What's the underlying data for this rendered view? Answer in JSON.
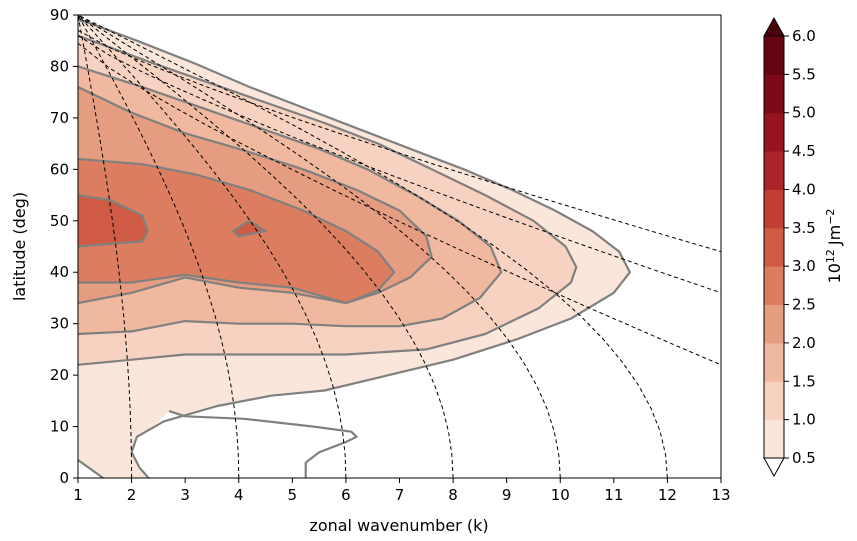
{
  "chart_data": {
    "type": "filled-contour",
    "xlabel": "zonal wavenumber (k)",
    "ylabel": "latitude (deg)",
    "xlim": [
      1,
      13
    ],
    "ylim": [
      0,
      90
    ],
    "x_ticks": [
      "1",
      "2",
      "3",
      "4",
      "5",
      "6",
      "7",
      "8",
      "9",
      "10",
      "11",
      "12",
      "13"
    ],
    "y_ticks": [
      "0",
      "10",
      "20",
      "30",
      "40",
      "50",
      "60",
      "70",
      "80",
      "90"
    ],
    "colorbar": {
      "label_base": "10",
      "label_exp": "12",
      "label_unit": "Jm",
      "label_unit_exp": "−2",
      "levels": [
        "0.5",
        "1.0",
        "1.5",
        "2.0",
        "2.5",
        "3.0",
        "3.5",
        "4.0",
        "4.5",
        "5.0",
        "5.5",
        "6.0"
      ],
      "extend": "both",
      "colors": [
        "#ffffff",
        "#fbe6dc",
        "#f7d2c0",
        "#efb89f",
        "#e69c80",
        "#dc7d60",
        "#d05b44",
        "#c23e36",
        "#ad2428",
        "#96141f",
        "#7d0a16",
        "#650410",
        "#4a000c"
      ]
    },
    "contour_fill_levels": [
      {
        "min": 0.5,
        "max": 1.0
      },
      {
        "min": 1.0,
        "max": 1.5
      },
      {
        "min": 1.5,
        "max": 2.0
      },
      {
        "min": 2.0,
        "max": 2.5
      },
      {
        "min": 2.5,
        "max": 3.0
      },
      {
        "min": 3.0,
        "max": 3.5
      }
    ],
    "contour_lines": [
      {
        "level": 0.5,
        "points": [
          [
            1,
            3.5
          ],
          [
            1.6,
            -1
          ]
        ]
      },
      {
        "level": 0.5,
        "points": [
          [
            2.4,
            -1
          ],
          [
            2.15,
            2
          ],
          [
            2,
            5
          ],
          [
            2.1,
            8
          ],
          [
            2.6,
            11
          ],
          [
            3.6,
            14
          ],
          [
            4.6,
            16
          ],
          [
            5.6,
            17
          ],
          [
            6.8,
            20
          ],
          [
            8,
            23
          ],
          [
            9.2,
            27
          ],
          [
            10.2,
            31
          ],
          [
            11,
            36
          ],
          [
            11.3,
            40
          ],
          [
            11.1,
            44
          ],
          [
            10.6,
            48
          ],
          [
            9.9,
            52
          ],
          [
            9.1,
            56
          ],
          [
            8.2,
            60
          ],
          [
            7.2,
            64
          ],
          [
            6.2,
            68
          ],
          [
            5.2,
            72
          ],
          [
            4.2,
            76
          ],
          [
            3.2,
            80.5
          ],
          [
            2.1,
            85
          ],
          [
            1.2,
            88.5
          ],
          [
            1,
            89
          ]
        ]
      },
      {
        "level": 0.5,
        "points": [
          [
            5.25,
            0
          ],
          [
            5.25,
            3
          ],
          [
            5.5,
            5
          ],
          [
            6,
            7
          ],
          [
            6.2,
            8
          ],
          [
            6.1,
            9
          ],
          [
            5.4,
            10
          ],
          [
            4.1,
            11.5
          ],
          [
            3,
            12
          ],
          [
            2.7,
            13
          ]
        ]
      },
      {
        "level": 1.0,
        "points": [
          [
            1,
            22
          ],
          [
            2,
            23
          ],
          [
            3,
            24
          ],
          [
            4,
            24
          ],
          [
            5,
            24
          ],
          [
            6,
            24
          ],
          [
            7.5,
            25
          ],
          [
            8.6,
            28
          ],
          [
            9.6,
            33
          ],
          [
            10.2,
            38
          ],
          [
            10.3,
            41
          ],
          [
            10.1,
            45
          ],
          [
            9.5,
            50
          ],
          [
            8.6,
            55
          ],
          [
            7.6,
            60
          ],
          [
            6.6,
            65
          ],
          [
            5.6,
            69
          ],
          [
            4.5,
            73
          ],
          [
            3.4,
            77
          ],
          [
            2.3,
            81
          ],
          [
            1,
            86
          ]
        ]
      },
      {
        "level": 1.5,
        "points": [
          [
            1,
            28
          ],
          [
            2,
            28.5
          ],
          [
            3,
            30.5
          ],
          [
            4,
            30
          ],
          [
            5,
            30
          ],
          [
            6,
            29.5
          ],
          [
            7,
            29.5
          ],
          [
            7.8,
            31
          ],
          [
            8.5,
            35
          ],
          [
            8.9,
            40
          ],
          [
            8.7,
            45
          ],
          [
            8.1,
            50
          ],
          [
            7.3,
            55
          ],
          [
            6.4,
            60
          ],
          [
            5.5,
            64
          ],
          [
            4.4,
            68
          ],
          [
            3.3,
            72
          ],
          [
            2.2,
            76
          ],
          [
            1,
            80
          ]
        ]
      },
      {
        "level": 2.0,
        "points": [
          [
            1,
            34
          ],
          [
            2,
            36
          ],
          [
            3,
            39
          ],
          [
            4,
            37
          ],
          [
            5,
            36
          ],
          [
            6,
            34
          ],
          [
            6.6,
            36
          ],
          [
            7.2,
            39
          ],
          [
            7.6,
            43
          ],
          [
            7.5,
            47
          ],
          [
            7,
            52
          ],
          [
            6.2,
            56
          ],
          [
            5.2,
            60
          ],
          [
            4,
            64
          ],
          [
            3,
            67
          ],
          [
            2,
            71
          ],
          [
            1,
            76
          ]
        ]
      },
      {
        "level": 2.5,
        "points": [
          [
            1,
            38
          ],
          [
            2,
            38
          ],
          [
            3,
            39.5
          ],
          [
            4,
            38
          ],
          [
            5,
            37
          ],
          [
            6,
            34
          ],
          [
            6.6,
            36.5
          ],
          [
            6.9,
            40
          ],
          [
            6.6,
            44
          ],
          [
            6,
            48
          ],
          [
            5.2,
            52
          ],
          [
            4.2,
            56
          ],
          [
            3.2,
            59
          ],
          [
            2.2,
            61
          ],
          [
            1,
            62
          ]
        ]
      },
      {
        "level": 3.0,
        "points": [
          [
            1,
            45
          ],
          [
            1.6,
            45.5
          ],
          [
            2.2,
            46
          ],
          [
            2.3,
            48
          ],
          [
            2.2,
            51
          ],
          [
            1.6,
            54
          ],
          [
            1,
            55
          ]
        ]
      },
      {
        "level": 3.0,
        "points": [
          [
            4,
            47
          ],
          [
            4.5,
            48
          ],
          [
            4.2,
            50
          ],
          [
            3.9,
            48
          ],
          [
            4,
            47
          ]
        ]
      }
    ],
    "dashed_lines_vertical": [
      2,
      4,
      6,
      8,
      10,
      12
    ],
    "dashed_lines_sloping": [
      {
        "start": [
          1,
          84.5
        ],
        "end": [
          13,
          22
        ]
      },
      {
        "start": [
          1,
          86
        ],
        "end": [
          13,
          36
        ]
      },
      {
        "start": [
          1,
          87
        ],
        "end": [
          13,
          44
        ]
      }
    ]
  }
}
